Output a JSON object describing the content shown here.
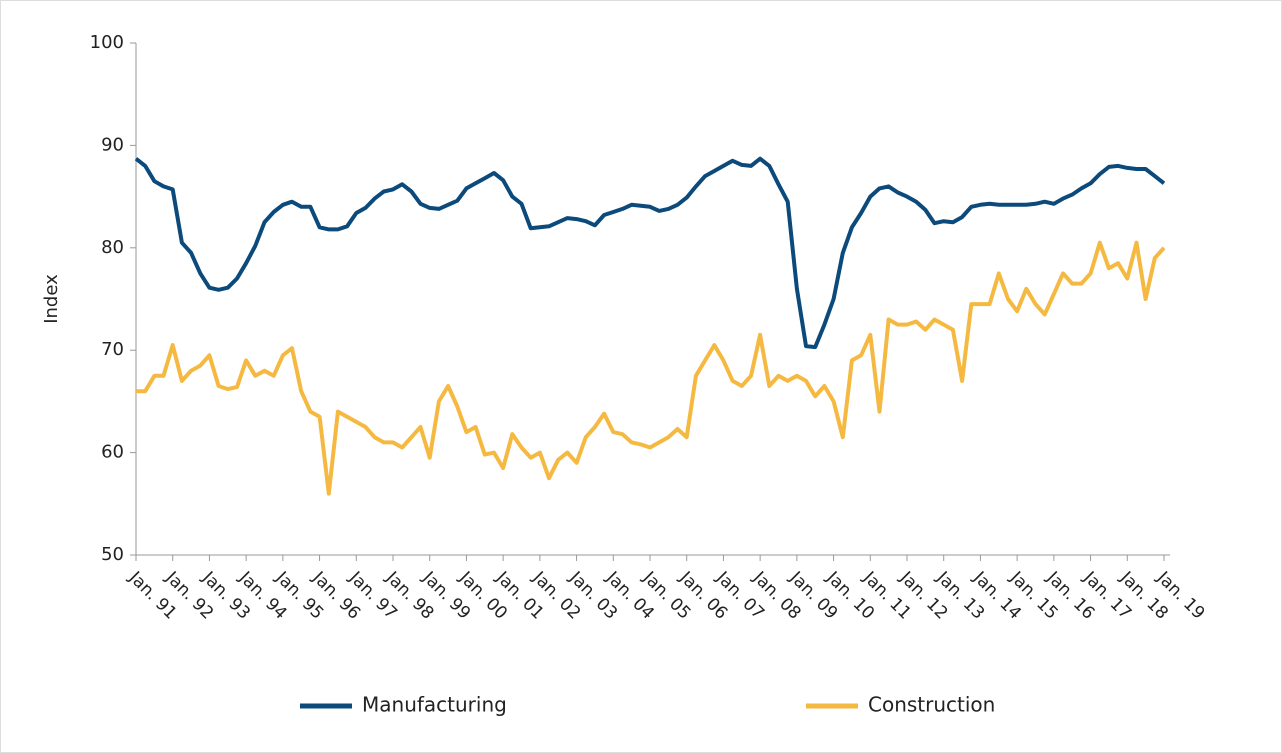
{
  "chart_data": {
    "type": "line",
    "y_label": "Index",
    "categories": [
      "Jan. 91",
      null,
      null,
      null,
      "Jan. 92",
      null,
      null,
      null,
      "Jan. 93",
      null,
      null,
      null,
      "Jan. 94",
      null,
      null,
      null,
      "Jan. 95",
      null,
      null,
      null,
      "Jan. 96",
      null,
      null,
      null,
      "Jan. 97",
      null,
      null,
      null,
      "Jan. 98",
      null,
      null,
      null,
      "Jan. 99",
      null,
      null,
      null,
      "Jan. 00",
      null,
      null,
      null,
      "Jan. 01",
      null,
      null,
      null,
      "Jan. 02",
      null,
      null,
      null,
      "Jan. 03",
      null,
      null,
      null,
      "Jan. 04",
      null,
      null,
      null,
      "Jan. 05",
      null,
      null,
      null,
      "Jan. 06",
      null,
      null,
      null,
      "Jan. 07",
      null,
      null,
      null,
      "Jan. 08",
      null,
      null,
      null,
      "Jan. 09",
      null,
      null,
      null,
      "Jan. 10",
      null,
      null,
      null,
      "Jan. 11",
      null,
      null,
      null,
      "Jan. 12",
      null,
      null,
      null,
      "Jan. 13",
      null,
      null,
      null,
      "Jan. 14",
      null,
      null,
      null,
      "Jan. 15",
      null,
      null,
      null,
      "Jan. 16",
      null,
      null,
      null,
      "Jan. 17",
      null,
      null,
      null,
      "Jan. 18",
      null,
      null,
      null,
      "Jan. 19"
    ],
    "series": [
      {
        "name": "Manufacturing",
        "color": "#0b4a7b",
        "values": [
          88.7,
          88.0,
          86.5,
          86.0,
          85.7,
          80.5,
          79.5,
          77.5,
          76.1,
          75.9,
          76.1,
          77.0,
          78.5,
          80.2,
          82.5,
          83.5,
          84.2,
          84.5,
          84.0,
          84.0,
          82.0,
          81.8,
          81.8,
          82.1,
          83.4,
          83.9,
          84.8,
          85.5,
          85.7,
          86.2,
          85.5,
          84.3,
          83.9,
          83.8,
          84.2,
          84.6,
          85.8,
          86.3,
          86.8,
          87.3,
          86.6,
          85.0,
          84.3,
          81.9,
          82.0,
          82.1,
          82.5,
          82.9,
          82.8,
          82.6,
          82.2,
          83.2,
          83.5,
          83.8,
          84.2,
          84.1,
          84.0,
          83.6,
          83.8,
          84.2,
          84.9,
          86.0,
          87.0,
          87.5,
          88.0,
          88.5,
          88.1,
          88.0,
          88.7,
          88.0,
          86.2,
          84.5,
          76.0,
          70.4,
          70.3,
          72.5,
          75.0,
          79.5,
          82.0,
          83.4,
          85.0,
          85.8,
          86.0,
          85.4,
          85.0,
          84.5,
          83.7,
          82.4,
          82.6,
          82.5,
          83.0,
          84.0,
          84.2,
          84.3,
          84.2,
          84.2,
          84.2,
          84.2,
          84.3,
          84.5,
          84.3,
          84.8,
          85.2,
          85.8,
          86.3,
          87.2,
          87.9,
          88.0,
          87.8,
          87.7,
          87.7,
          87.0,
          86.3
        ]
      },
      {
        "name": "Construction",
        "color": "#f5b941",
        "values": [
          66.0,
          66.0,
          67.5,
          67.5,
          70.5,
          67.0,
          68.0,
          68.5,
          69.5,
          66.5,
          66.2,
          66.4,
          69.0,
          67.5,
          68.0,
          67.5,
          69.5,
          70.2,
          66.0,
          64.0,
          63.5,
          56.0,
          64.0,
          63.5,
          63.0,
          62.5,
          61.5,
          61.0,
          61.0,
          60.5,
          61.5,
          62.5,
          59.5,
          65.0,
          66.5,
          64.5,
          62.0,
          62.5,
          59.8,
          60.0,
          58.5,
          61.8,
          60.5,
          59.5,
          60.0,
          57.5,
          59.3,
          60.0,
          59.0,
          61.5,
          62.5,
          63.8,
          62.0,
          61.8,
          61.0,
          60.8,
          60.5,
          61.0,
          61.5,
          62.3,
          61.5,
          67.5,
          69.0,
          70.5,
          69.0,
          67.0,
          66.5,
          67.5,
          71.5,
          66.5,
          67.5,
          67.0,
          67.5,
          67.0,
          65.5,
          66.5,
          65.0,
          61.5,
          69.0,
          69.5,
          71.5,
          64.0,
          73.0,
          72.5,
          72.5,
          72.8,
          72.0,
          73.0,
          72.5,
          72.0,
          67.0,
          74.5,
          74.5,
          74.5,
          77.5,
          75.0,
          73.8,
          76.0,
          74.5,
          73.5,
          75.5,
          77.5,
          76.5,
          76.5,
          77.5,
          80.5,
          78.0,
          78.5,
          77.0,
          80.5,
          75.0,
          79.0,
          80.0
        ]
      }
    ],
    "ylim": [
      50,
      100
    ],
    "yticks": [
      50,
      60,
      70,
      80,
      90,
      100
    ]
  }
}
